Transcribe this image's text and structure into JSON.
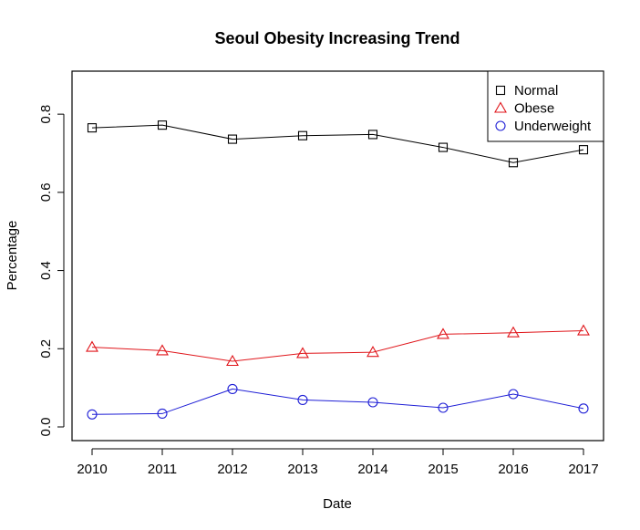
{
  "chart_data": {
    "type": "line",
    "title": "Seoul Obesity Increasing Trend",
    "xlabel": "Date",
    "ylabel": "Percentage",
    "categories": [
      "2010",
      "2011",
      "2012",
      "2013",
      "2014",
      "2015",
      "2016",
      "2017"
    ],
    "yticks": [
      "0.0",
      "0.2",
      "0.4",
      "0.6",
      "0.8"
    ],
    "ylim": [
      -0.035,
      0.91
    ],
    "legend_position": "top-right",
    "grid": false,
    "series": [
      {
        "name": "Normal",
        "marker": "square",
        "color": "#000000",
        "values": [
          0.765,
          0.772,
          0.736,
          0.745,
          0.748,
          0.715,
          0.676,
          0.709
        ]
      },
      {
        "name": "Obese",
        "marker": "triangle",
        "color": "#e0161b",
        "values": [
          0.204,
          0.195,
          0.168,
          0.188,
          0.191,
          0.237,
          0.241,
          0.246
        ]
      },
      {
        "name": "Underweight",
        "marker": "circle",
        "color": "#1f1fd6",
        "values": [
          0.032,
          0.034,
          0.097,
          0.069,
          0.063,
          0.049,
          0.084,
          0.047
        ]
      }
    ]
  }
}
